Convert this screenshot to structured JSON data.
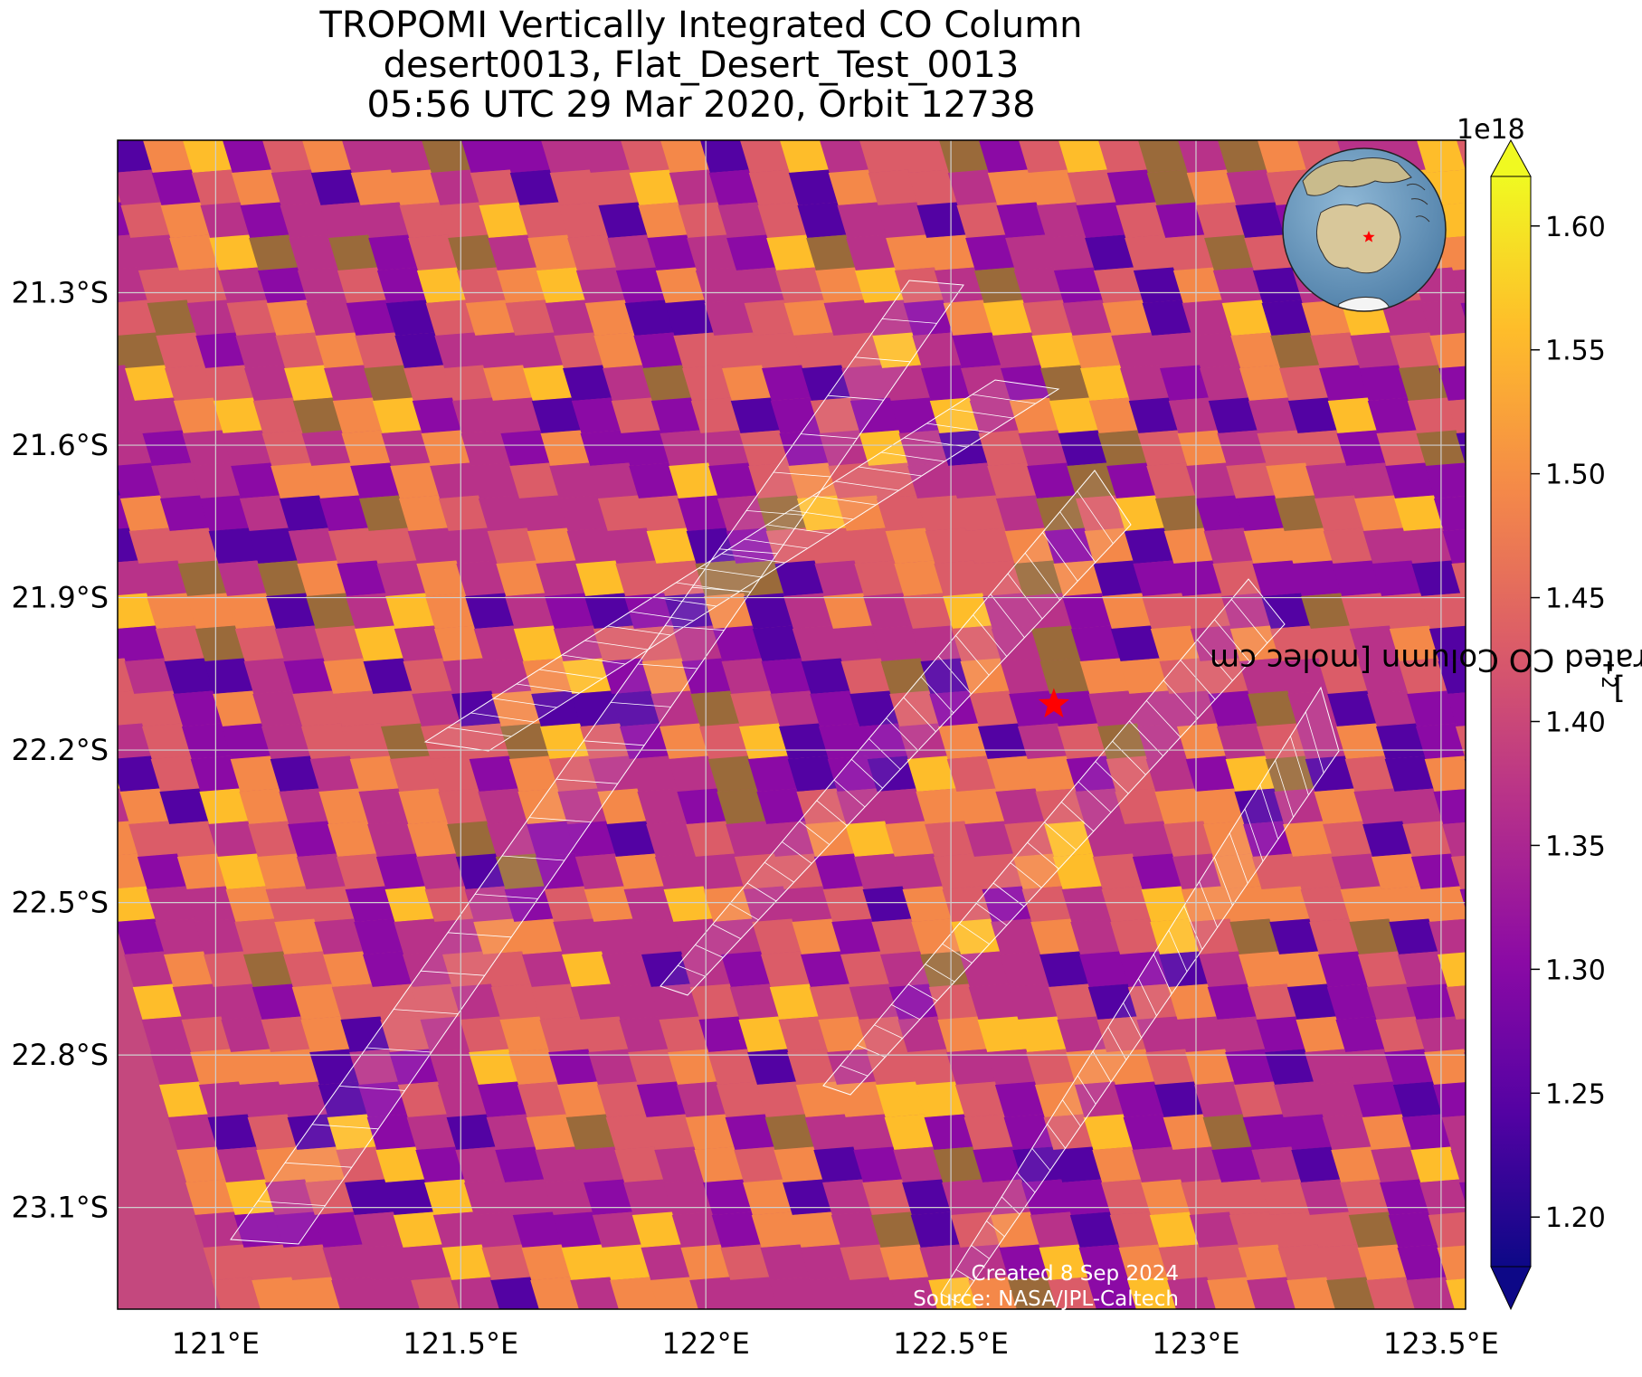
{
  "title": {
    "line1": "TROPOMI Vertically Integrated CO Column",
    "line2": "desert0013, Flat_Desert_Test_0013",
    "line3": "05:56 UTC 29 Mar 2020, Orbit 12738"
  },
  "map": {
    "lon_range": [
      120.8,
      123.55
    ],
    "lat_range": [
      -23.3,
      -21.0
    ],
    "lon_ticks": [
      {
        "value": 121.0,
        "label": "121°E"
      },
      {
        "value": 121.5,
        "label": "121.5°E"
      },
      {
        "value": 122.0,
        "label": "122°E"
      },
      {
        "value": 122.5,
        "label": "122.5°E"
      },
      {
        "value": 123.0,
        "label": "123°E"
      },
      {
        "value": 123.5,
        "label": "123.5°E"
      }
    ],
    "lat_ticks": [
      {
        "value": -21.3,
        "label": "21.3°S"
      },
      {
        "value": -21.6,
        "label": "21.6°S"
      },
      {
        "value": -21.9,
        "label": "21.9°S"
      },
      {
        "value": -22.2,
        "label": "22.2°S"
      },
      {
        "value": -22.5,
        "label": "22.5°S"
      },
      {
        "value": -22.8,
        "label": "22.8°S"
      },
      {
        "value": -23.1,
        "label": "23.1°S"
      }
    ],
    "grid": true,
    "target_site": {
      "name": "desert0013",
      "lon": 122.71,
      "lat": -22.11,
      "marker": "red-star"
    },
    "inset": "globe-locator-australia",
    "colormap": "plasma"
  },
  "colorbar": {
    "label": "TROPOMI Vertically Integrated CO Column [molec cm",
    "label_exponent": "−2",
    "label_close": "]",
    "multiplier": "1e18",
    "min": 1.18,
    "max": 1.62,
    "extend": "both",
    "ticks": [
      {
        "value": 1.2,
        "label": "1.20"
      },
      {
        "value": 1.25,
        "label": "1.25"
      },
      {
        "value": 1.3,
        "label": "1.30"
      },
      {
        "value": 1.35,
        "label": "1.35"
      },
      {
        "value": 1.4,
        "label": "1.40"
      },
      {
        "value": 1.45,
        "label": "1.45"
      },
      {
        "value": 1.5,
        "label": "1.50"
      },
      {
        "value": 1.55,
        "label": "1.55"
      },
      {
        "value": 1.6,
        "label": "1.60"
      }
    ],
    "colors": [
      "#0d0887",
      "#5302a3",
      "#8b0aa5",
      "#b83289",
      "#db5c68",
      "#f48849",
      "#febd2a",
      "#f0f921"
    ]
  },
  "credit": {
    "created": "Created 8 Sep 2024",
    "source": "Source: NASA/JPL-Caltech"
  }
}
